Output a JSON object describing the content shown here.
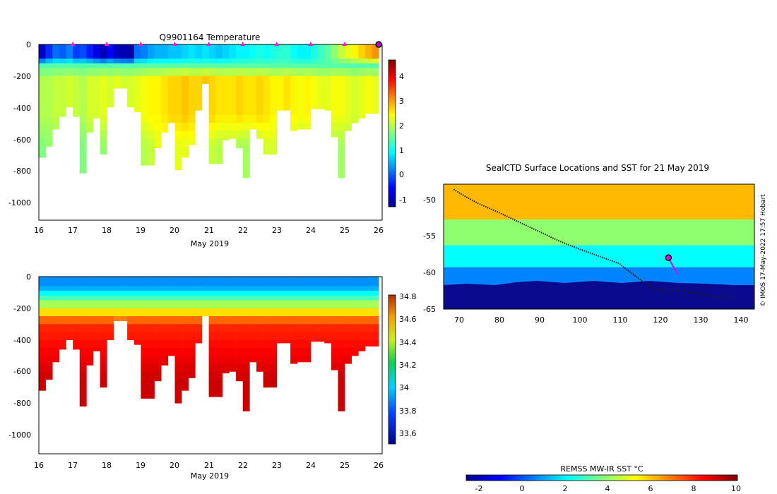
{
  "panel_temperature": {
    "title": "Q9901164  Temperature",
    "x_ticks": [
      "16",
      "17",
      "18",
      "19",
      "20",
      "21",
      "22",
      "23",
      "24",
      "25",
      "26"
    ],
    "y_ticks": [
      "0",
      "-200",
      "-400",
      "-600",
      "-800",
      "-1000"
    ],
    "xlabel": "May 2019",
    "colorbar_ticks": [
      "4",
      "3",
      "2",
      "1",
      "0",
      "-1"
    ]
  },
  "panel_salinity": {
    "x_ticks": [
      "16",
      "17",
      "18",
      "19",
      "20",
      "21",
      "22",
      "23",
      "24",
      "25",
      "26"
    ],
    "y_ticks": [
      "0",
      "-200",
      "-400",
      "-600",
      "-800",
      "-1000"
    ],
    "xlabel": "May 2019",
    "colorbar_ticks": [
      "34.8",
      "34.6",
      "34.4",
      "34.2",
      "34",
      "33.8",
      "33.6"
    ]
  },
  "panel_map": {
    "title": "SealCTD Surface Locations and SST for 21 May 2019",
    "x_ticks": [
      "70",
      "80",
      "90",
      "100",
      "110",
      "120",
      "130",
      "140"
    ],
    "y_ticks": [
      "-50",
      "-55",
      "-60",
      "-65"
    ],
    "credit": "© IMOS 17-May-2022 17:57 Hobart",
    "colorbar_label": "REMSS MW-IR SST °C",
    "colorbar_ticks": [
      "-2",
      "0",
      "2",
      "4",
      "6",
      "8",
      "10"
    ]
  },
  "chart_data": [
    {
      "type": "heatmap",
      "title": "Q9901164  Temperature",
      "xlabel": "May 2019",
      "ylabel": "",
      "xlim": [
        16,
        26.1
      ],
      "ylim": [
        -1120,
        0
      ],
      "clim": [
        -1.2,
        4.8
      ],
      "colormap": "jet",
      "profile_times": [
        16.1,
        16.3,
        16.5,
        16.7,
        16.9,
        17.1,
        17.3,
        17.5,
        17.7,
        17.9,
        18.1,
        18.3,
        18.5,
        18.7,
        18.9,
        19.1,
        19.3,
        19.5,
        19.7,
        19.9,
        20.1,
        20.3,
        20.5,
        20.7,
        20.9,
        21.1,
        21.3,
        21.5,
        21.7,
        21.9,
        22.1,
        22.3,
        22.5,
        22.7,
        22.9,
        23.1,
        23.3,
        23.5,
        23.7,
        23.9,
        24.1,
        24.3,
        24.5,
        24.7,
        24.9,
        25.1,
        25.3,
        25.5,
        25.7,
        25.9
      ],
      "profile_max_depth_m": [
        720,
        650,
        540,
        460,
        400,
        460,
        820,
        560,
        470,
        700,
        400,
        280,
        280,
        400,
        430,
        770,
        770,
        660,
        560,
        500,
        800,
        720,
        640,
        420,
        250,
        760,
        760,
        610,
        600,
        660,
        850,
        540,
        600,
        700,
        700,
        420,
        420,
        550,
        540,
        540,
        410,
        410,
        420,
        590,
        850,
        550,
        500,
        470,
        440,
        440
      ],
      "surface_temperature_c": [
        -0.8,
        -0.2,
        0.2,
        0.1,
        0.3,
        -0.1,
        0.0,
        -0.3,
        -0.6,
        -0.9,
        -0.5,
        -0.8,
        -0.9,
        -1.0,
        0.2,
        0.3,
        0.5,
        0.6,
        0.6,
        0.7,
        0.7,
        0.8,
        0.9,
        0.8,
        0.9,
        0.8,
        0.7,
        0.8,
        0.9,
        1.0,
        1.0,
        1.1,
        1.2,
        1.1,
        1.2,
        1.3,
        1.3,
        1.1,
        1.0,
        1.0,
        1.2,
        1.4,
        1.6,
        1.9,
        2.2,
        2.4,
        2.6,
        2.8,
        3.0,
        3.2
      ],
      "mid_depth_temperature_c": [
        2.1,
        2.1,
        2.2,
        2.2,
        2.3,
        2.2,
        2.1,
        2.3,
        2.3,
        2.4,
        2.3,
        2.4,
        2.3,
        2.3,
        2.4,
        2.5,
        2.6,
        2.6,
        2.7,
        2.8,
        2.8,
        2.9,
        2.8,
        2.8,
        2.9,
        2.8,
        2.7,
        2.7,
        2.7,
        2.8,
        2.7,
        2.7,
        2.8,
        2.7,
        2.6,
        2.6,
        2.7,
        2.6,
        2.5,
        2.6,
        2.5,
        2.4,
        2.4,
        2.5,
        2.5,
        2.4,
        2.3,
        2.4,
        2.5,
        2.4
      ],
      "deep_temperature_c": [
        1.8,
        1.9,
        1.9,
        2.0,
        2.0,
        2.0,
        1.8,
        1.9,
        2.0,
        1.9,
        2.0,
        2.1,
        2.1,
        2.0,
        2.0,
        2.1,
        2.2,
        2.4,
        2.4,
        2.5,
        2.4,
        2.4,
        2.4,
        2.4,
        2.4,
        2.2,
        2.1,
        2.1,
        2.1,
        2.0,
        2.0,
        2.1,
        2.1,
        2.3,
        2.3,
        2.3,
        2.2,
        2.2,
        2.1,
        2.1,
        2.2,
        2.2,
        2.1,
        2.0,
        2.0,
        2.0,
        2.1,
        2.1,
        2.1,
        2.2
      ],
      "surface_marker_times": [
        17,
        18,
        19,
        20,
        21,
        22,
        23,
        24,
        25
      ],
      "current_position_marker_time": 26
    },
    {
      "type": "heatmap",
      "title": "",
      "xlabel": "May 2019",
      "ylabel": "",
      "xlim": [
        16,
        26.1
      ],
      "ylim": [
        -1120,
        0
      ],
      "clim": [
        33.5,
        34.82
      ],
      "colormap": "jet",
      "profile_times": [
        16.1,
        16.3,
        16.5,
        16.7,
        16.9,
        17.1,
        17.3,
        17.5,
        17.7,
        17.9,
        18.1,
        18.3,
        18.5,
        18.7,
        18.9,
        19.1,
        19.3,
        19.5,
        19.7,
        19.9,
        20.1,
        20.3,
        20.5,
        20.7,
        20.9,
        21.1,
        21.3,
        21.5,
        21.7,
        21.9,
        22.1,
        22.3,
        22.5,
        22.7,
        22.9,
        23.1,
        23.3,
        23.5,
        23.7,
        23.9,
        24.1,
        24.3,
        24.5,
        24.7,
        24.9,
        25.1,
        25.3,
        25.5,
        25.7,
        25.9
      ],
      "profile_max_depth_m": [
        720,
        650,
        540,
        460,
        400,
        460,
        820,
        560,
        470,
        700,
        400,
        280,
        280,
        400,
        430,
        770,
        770,
        660,
        560,
        500,
        800,
        720,
        640,
        420,
        250,
        760,
        760,
        610,
        600,
        660,
        850,
        540,
        600,
        700,
        700,
        420,
        420,
        550,
        540,
        540,
        410,
        410,
        420,
        590,
        850,
        550,
        500,
        470,
        440,
        440
      ],
      "surface_salinity": 33.85,
      "deep_salinity": 34.72
    },
    {
      "type": "heatmap",
      "title": "SealCTD Surface Locations and SST for 21 May 2019",
      "xlabel": "",
      "ylabel": "",
      "xlim": [
        66.5,
        143.5
      ],
      "ylim": [
        -65.2,
        -48.2
      ],
      "clim": [
        -2.5,
        10.5
      ],
      "colorbar_label": "REMSS MW-IR SST °C",
      "track_lon_lat": [
        [
          69,
          -48.9
        ],
        [
          71,
          -49.6
        ],
        [
          75,
          -50.8
        ],
        [
          80,
          -52.0
        ],
        [
          85,
          -53.3
        ],
        [
          90,
          -54.6
        ],
        [
          95,
          -55.9
        ],
        [
          100,
          -57.0
        ],
        [
          105,
          -58.0
        ],
        [
          110,
          -59.0
        ],
        [
          113,
          -60.3
        ],
        [
          116,
          -61.5
        ],
        [
          119,
          -62.5
        ],
        [
          122,
          -62.8
        ],
        [
          126,
          -62.8
        ],
        [
          130,
          -63.1
        ],
        [
          133,
          -63.5
        ],
        [
          136,
          -63.7
        ],
        [
          138.5,
          -63.7
        ]
      ],
      "highlight_track_lon_lat": [
        [
          122.2,
          -58.2
        ],
        [
          123.5,
          -59.5
        ],
        [
          124.5,
          -60.5
        ]
      ],
      "current_position_lon_lat": [
        122.2,
        -58.2
      ],
      "sst_bands": [
        {
          "lat_max": -48.2,
          "lat_min": -53.0,
          "sst_c": 6.5
        },
        {
          "lat_max": -53.0,
          "lat_min": -56.5,
          "sst_c": 4.2
        },
        {
          "lat_max": -56.5,
          "lat_min": -59.5,
          "sst_c": 2.4
        },
        {
          "lat_max": -59.5,
          "lat_min": -62.5,
          "sst_c": 0.8
        },
        {
          "lat_max": -62.5,
          "lat_min": -65.2,
          "sst_c": -1.8
        }
      ]
    }
  ]
}
